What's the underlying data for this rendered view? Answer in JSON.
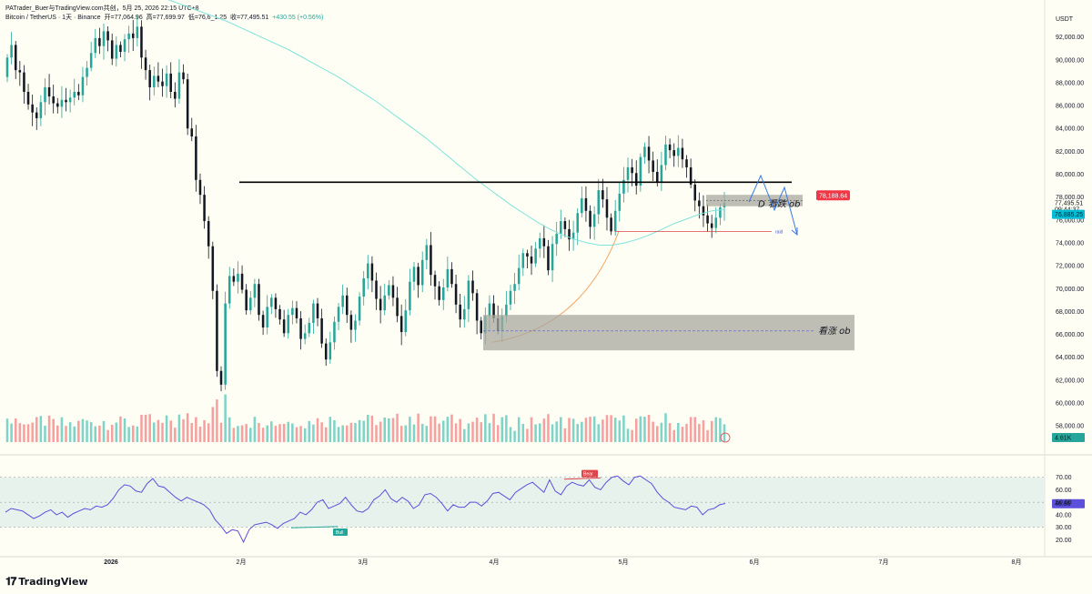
{
  "header": {
    "source": "PATrader_Buer与TradingView.com共创，5月 25, 2026 22:15 UTC+8",
    "symbol": "Bitcoin / TetherUS · 1天 · Binance",
    "open": "开=77,064.96",
    "high": "高=77,699.97",
    "low": "低=76,6_1.25",
    "close": "收=77,495.51",
    "change": "+430.55 (+0.56%)"
  },
  "price_axis": {
    "currency": "USDT",
    "ticks": [
      "92,000.00",
      "90,000.00",
      "88,000.00",
      "86,000.00",
      "84,000.00",
      "82,000.00",
      "80,000.00",
      "78,000.00",
      "76,000.00",
      "74,000.00",
      "72,000.00",
      "70,000.00",
      "68,000.00",
      "66,000.00",
      "64,000.00",
      "62,000.00",
      "60,000.00",
      "58,000.00"
    ],
    "tick_values": [
      92000,
      90000,
      88000,
      86000,
      84000,
      82000,
      80000,
      78000,
      76000,
      74000,
      72000,
      70000,
      68000,
      66000,
      64000,
      62000,
      60000,
      58000
    ],
    "labels": {
      "ob_price": "78,188.64",
      "ob_price_color": "#f23645",
      "last_price": "77,495.51",
      "countdown": "09:44:37",
      "ema_value": "76,885.25",
      "ema_color": "#00bcd4",
      "volume_value": "4.61K",
      "volume_color": "#26a69a"
    }
  },
  "rsi_axis": {
    "ticks": [
      "70.00",
      "60.00",
      "50.00",
      "40.00",
      "30.00",
      "20.00"
    ],
    "tick_values": [
      70,
      60,
      50,
      40,
      30,
      20
    ],
    "current": "48.86",
    "current_color": "#5b4fdb"
  },
  "time_axis": {
    "ticks": [
      "2026",
      "2月",
      "3月",
      "4月",
      "5月",
      "6月",
      "7月",
      "8月"
    ]
  },
  "annotations": {
    "bearish_ob": "D 看跌 ob",
    "bullish_ob": "看涨 ob",
    "raid": "raid",
    "bear_tag": "Bear",
    "bull_tag": "Bull"
  },
  "colors": {
    "up": "#26a69a",
    "down": "#131722",
    "vol_up": "#7fd3c8",
    "vol_down": "#f7a09f",
    "ema": "#7fe3dc",
    "rsi": "#5b4fdb",
    "rsi_band": "#e8f2ec",
    "zone": "#a8a8a0"
  },
  "logo_text": "TradingView",
  "chart_data": {
    "type": "candlestick",
    "interval": "1D",
    "start_open": 88500,
    "closes": [
      90200,
      91300,
      89100,
      88900,
      87200,
      86100,
      85400,
      84900,
      86300,
      87600,
      86800,
      86200,
      85900,
      86500,
      86300,
      86700,
      87200,
      86900,
      88500,
      89300,
      90600,
      91900,
      91200,
      92500,
      91700,
      90100,
      91300,
      90700,
      91800,
      92300,
      91900,
      92900,
      90200,
      89100,
      87600,
      88600,
      88100,
      87700,
      88800,
      87200,
      86600,
      88900,
      88300,
      84000,
      83300,
      79500,
      78200,
      75900,
      73700,
      69800,
      62800,
      61600,
      68700,
      71100,
      70600,
      71300,
      69900,
      68100,
      69200,
      70400,
      67700,
      66600,
      68400,
      69200,
      68200,
      67300,
      66100,
      67700,
      68300,
      67400,
      65600,
      66100,
      67000,
      68700,
      67400,
      65200,
      63800,
      65300,
      67100,
      68400,
      69400,
      67700,
      66400,
      67200,
      69300,
      70900,
      72200,
      70700,
      69100,
      68100,
      69400,
      70300,
      69200,
      67600,
      66200,
      68100,
      70600,
      71900,
      70300,
      72500,
      73800,
      71200,
      70200,
      69000,
      70100,
      71700,
      70400,
      68600,
      67300,
      68200,
      70700,
      69600,
      67200,
      66100,
      67600,
      68700,
      67400,
      66300,
      67600,
      68600,
      69800,
      70400,
      71800,
      73100,
      72800,
      72200,
      73500,
      74400,
      73700,
      71600,
      73900,
      74800,
      75900,
      75200,
      74300,
      74900,
      76600,
      77900,
      76800,
      75400,
      76500,
      78600,
      77800,
      76200,
      75000,
      76800,
      78300,
      79500,
      80600,
      80100,
      79000,
      81500,
      82400,
      81200,
      80200,
      79300,
      80800,
      82600,
      82100,
      81600,
      82300,
      81300,
      80600,
      79100,
      77700,
      77200,
      76400,
      75700,
      75300,
      76200,
      77100,
      77495
    ],
    "daily_high_approx": "annotated on axis",
    "ema": [
      95400,
      95000,
      94600,
      94200,
      93800,
      93400,
      92900,
      92400,
      91900,
      91400,
      90900,
      90300,
      89700,
      89100,
      88500,
      87800,
      87100,
      86400,
      85600,
      84800,
      84000,
      83200,
      82300,
      81400,
      80500,
      79600,
      78800,
      78000,
      77200,
      76500,
      75800,
      75200,
      74700,
      74300,
      74000,
      73800,
      73800,
      74000,
      74300,
      74700,
      75200,
      75700,
      76100,
      76500,
      76800,
      76900
    ],
    "volume_relative": "bars proportional, last 4.61K",
    "rsi": [
      42,
      45,
      44,
      43,
      40,
      37,
      39,
      42,
      44,
      40,
      42,
      38,
      41,
      43,
      45,
      44,
      47,
      46,
      48,
      53,
      60,
      64,
      63,
      59,
      58,
      65,
      69,
      63,
      62,
      58,
      54,
      51,
      54,
      52,
      50,
      48,
      44,
      36,
      31,
      25,
      28,
      27,
      18,
      28,
      32,
      33,
      34,
      32,
      29,
      33,
      35,
      37,
      42,
      40,
      44,
      50,
      52,
      45,
      47,
      49,
      54,
      48,
      43,
      42,
      45,
      52,
      55,
      60,
      53,
      50,
      54,
      51,
      45,
      48,
      56,
      57,
      54,
      49,
      43,
      48,
      46,
      46,
      50,
      50,
      47,
      51,
      57,
      58,
      55,
      52,
      58,
      61,
      64,
      66,
      62,
      58,
      68,
      59,
      56,
      63,
      66,
      64,
      63,
      68,
      62,
      60,
      66,
      70,
      71,
      67,
      64,
      70,
      71,
      68,
      65,
      58,
      53,
      50,
      46,
      45,
      44,
      47,
      46,
      40,
      44,
      45,
      48,
      49
    ],
    "ylim": [
      56500,
      93800
    ],
    "rsi_range": [
      10,
      80
    ],
    "rsi_band": [
      30,
      70
    ],
    "levels": {
      "resistance": 79300,
      "bearish_ob_top": 78200,
      "bearish_ob_bottom": 77200,
      "bullish_ob_top": 67700,
      "bullish_ob_bottom": 64600,
      "bullish_ob_mid": 66300,
      "raid": 75000
    }
  }
}
